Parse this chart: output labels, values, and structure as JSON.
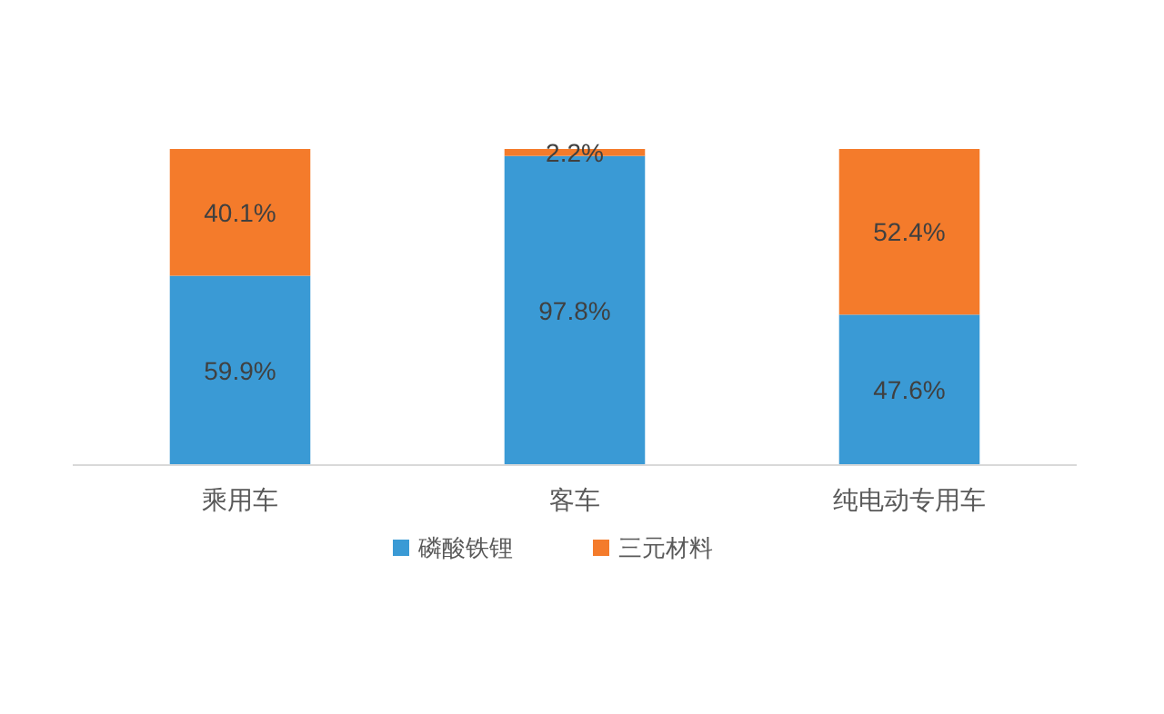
{
  "chart_data": {
    "type": "bar",
    "stacked": true,
    "categories": [
      "乘用车",
      "客车",
      "纯电动专用车"
    ],
    "series": [
      {
        "name": "磷酸铁锂",
        "color": "#3a9ad5",
        "values": [
          59.9,
          97.8,
          47.6
        ],
        "value_labels": [
          "59.9%",
          "97.8%",
          "47.6%"
        ]
      },
      {
        "name": "三元材料",
        "color": "#f47b2b",
        "values": [
          40.1,
          2.2,
          52.4
        ],
        "value_labels": [
          "40.1%",
          "2.2%",
          "52.4%"
        ]
      }
    ],
    "legend": "bottom",
    "grid": false
  }
}
